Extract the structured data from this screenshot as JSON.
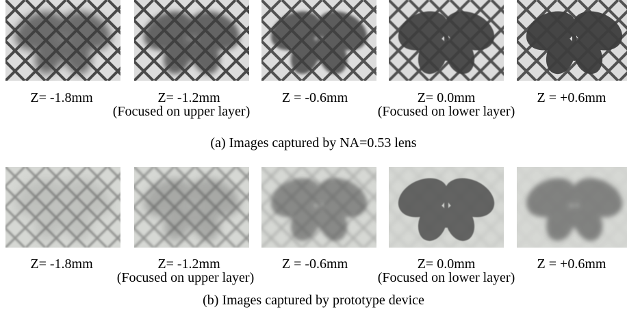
{
  "panels": [
    {
      "caption": "(a) Images captured by NA=0.53 lens",
      "images": [
        {
          "label": "Z= -1.8mm"
        },
        {
          "label": "Z= -1.2mm",
          "note": "(Focused on upper layer)"
        },
        {
          "label": "Z = -0.6mm"
        },
        {
          "label": "Z= 0.0mm",
          "note": "(Focused on lower layer)"
        },
        {
          "label": "Z = +0.6mm"
        }
      ]
    },
    {
      "caption": "(b) Images captured by prototype device",
      "images": [
        {
          "label": "Z= -1.8mm"
        },
        {
          "label": "Z= -1.2mm",
          "note": "(Focused on upper layer)"
        },
        {
          "label": "Z = -0.6mm"
        },
        {
          "label": "Z= 0.0mm",
          "note": "(Focused on lower layer)"
        },
        {
          "label": "Z = +0.6mm"
        }
      ]
    }
  ]
}
